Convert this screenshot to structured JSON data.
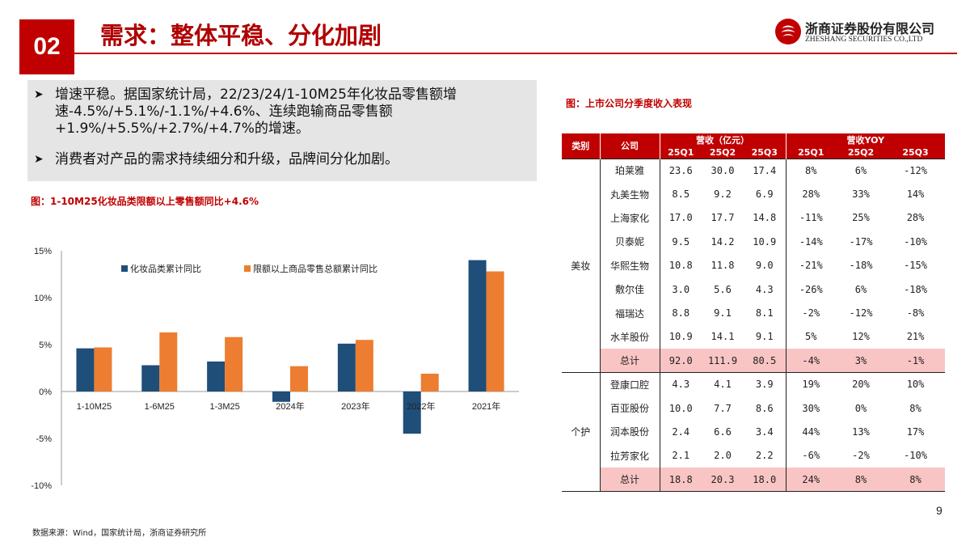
{
  "header": {
    "section_number": "02",
    "title": "需求：整体平稳、分化加剧",
    "company_name_cn": "浙商证券股份有限公司",
    "company_name_en": "ZHESHANG SECURITIES CO.,LTD",
    "accent_color": "#c00000"
  },
  "bullets": [
    {
      "text": "增速平稳。据国家统计局，22/23/24/1-10M25年化妆品零售额增速-4.5%/+5.1%/-1.1%/+4.6%、连续跑输商品零售额+1.9%/+5.5%/+2.7%/+4.7%的增速。"
    },
    {
      "text": "消费者对产品的需求持续细分和升级，品牌间分化加剧。"
    }
  ],
  "bullet_icon": "arrow-right-icon",
  "chart_caption": "图：1-10M25化妆品类限额以上零售额同比+4.6%",
  "chart_data": {
    "type": "bar",
    "title": "",
    "xlabel": "",
    "ylabel": "",
    "categories": [
      "1-10M25",
      "1-6M25",
      "1-3M25",
      "2024年",
      "2023年",
      "2022年",
      "2021年"
    ],
    "series": [
      {
        "name": "化妆品类累计同比",
        "color": "#1f4e79",
        "values": [
          4.6,
          2.8,
          3.2,
          -1.1,
          5.1,
          -4.5,
          14.0
        ]
      },
      {
        "name": "限额以上商品零售总额累计同比",
        "color": "#ed7d31",
        "values": [
          4.7,
          6.3,
          5.8,
          2.7,
          5.5,
          1.9,
          12.8
        ]
      }
    ],
    "ylim": [
      -10,
      15
    ],
    "y_ticks": [
      "-10%",
      "-5%",
      "0%",
      "5%",
      "10%",
      "15%"
    ],
    "y_tick_values": [
      -10,
      -5,
      0,
      5,
      10,
      15
    ],
    "grid": false,
    "legend_position": "top"
  },
  "table_caption": "图：上市公司分季度收入表现",
  "table": {
    "headers": {
      "category": "类别",
      "company": "公司",
      "revenue_group": "营收（亿元）",
      "yoy_group": "营收YOY",
      "quarters": [
        "25Q1",
        "25Q2",
        "25Q3"
      ]
    },
    "groups": [
      {
        "category": "美妆",
        "rows": [
          {
            "company": "珀莱雅",
            "rev": [
              "23.6",
              "30.0",
              "17.4"
            ],
            "yoy": [
              "8%",
              "6%",
              "-12%"
            ]
          },
          {
            "company": "丸美生物",
            "rev": [
              "8.5",
              "9.2",
              "6.9"
            ],
            "yoy": [
              "28%",
              "33%",
              "14%"
            ]
          },
          {
            "company": "上海家化",
            "rev": [
              "17.0",
              "17.7",
              "14.8"
            ],
            "yoy": [
              "-11%",
              "25%",
              "28%"
            ]
          },
          {
            "company": "贝泰妮",
            "rev": [
              "9.5",
              "14.2",
              "10.9"
            ],
            "yoy": [
              "-14%",
              "-17%",
              "-10%"
            ]
          },
          {
            "company": "华熙生物",
            "rev": [
              "10.8",
              "11.8",
              "9.0"
            ],
            "yoy": [
              "-21%",
              "-18%",
              "-15%"
            ]
          },
          {
            "company": "敷尔佳",
            "rev": [
              "3.0",
              "5.6",
              "4.3"
            ],
            "yoy": [
              "-26%",
              "6%",
              "-18%"
            ]
          },
          {
            "company": "福瑞达",
            "rev": [
              "8.8",
              "9.1",
              "8.1"
            ],
            "yoy": [
              "-2%",
              "-12%",
              "-8%"
            ]
          },
          {
            "company": "水羊股份",
            "rev": [
              "10.9",
              "14.1",
              "9.1"
            ],
            "yoy": [
              "5%",
              "12%",
              "21%"
            ]
          }
        ],
        "total": {
          "company": "总计",
          "rev": [
            "92.0",
            "111.9",
            "80.5"
          ],
          "yoy": [
            "-4%",
            "3%",
            "-1%"
          ]
        }
      },
      {
        "category": "个护",
        "rows": [
          {
            "company": "登康口腔",
            "rev": [
              "4.3",
              "4.1",
              "3.9"
            ],
            "yoy": [
              "19%",
              "20%",
              "10%"
            ]
          },
          {
            "company": "百亚股份",
            "rev": [
              "10.0",
              "7.7",
              "8.6"
            ],
            "yoy": [
              "30%",
              "0%",
              "8%"
            ]
          },
          {
            "company": "润本股份",
            "rev": [
              "2.4",
              "6.6",
              "3.4"
            ],
            "yoy": [
              "44%",
              "13%",
              "17%"
            ]
          },
          {
            "company": "拉芳家化",
            "rev": [
              "2.1",
              "2.0",
              "2.2"
            ],
            "yoy": [
              "-6%",
              "-2%",
              "-10%"
            ]
          }
        ],
        "total": {
          "company": "总计",
          "rev": [
            "18.8",
            "20.3",
            "18.0"
          ],
          "yoy": [
            "24%",
            "8%",
            "8%"
          ]
        }
      }
    ],
    "total_fill_color": "#f9c4c4"
  },
  "source_note": "数据来源：Wind，国家统计局，浙商证券研究所",
  "page_number": "9"
}
